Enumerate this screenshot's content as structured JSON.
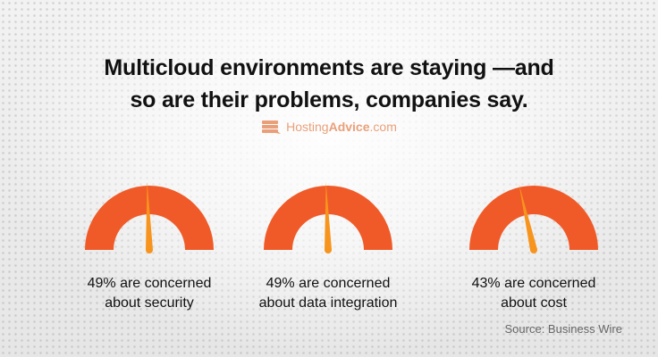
{
  "title": {
    "line1": "Multicloud environments are staying —and",
    "line2": "so are their problems, companies say."
  },
  "logo": {
    "text_light": "Hosting",
    "text_bold": "Advice",
    "text_suffix": ".com"
  },
  "chart_data": {
    "type": "gauge",
    "gauges": [
      {
        "value": 49,
        "label_line1": "49% are concerned",
        "label_line2": "about security"
      },
      {
        "value": 49,
        "label_line1": "49% are concerned",
        "label_line2": "about data integration"
      },
      {
        "value": 43,
        "label_line1": "43% are concerned",
        "label_line2": "about cost"
      }
    ],
    "range": [
      0,
      100
    ],
    "colors": {
      "arc": "#f05a28",
      "needle": "#f7941d"
    }
  },
  "source": "Source: Business Wire"
}
